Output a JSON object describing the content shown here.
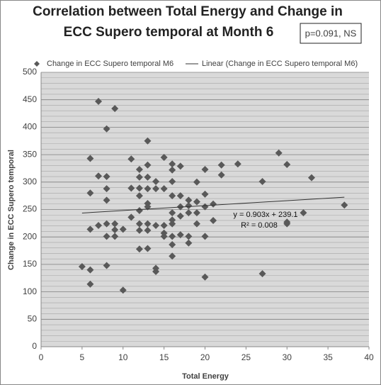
{
  "chart_data": {
    "type": "scatter",
    "title": [
      "Correlation between Total Energy and Change in",
      "ECC Supero temporal at Month 6"
    ],
    "annotation": "p=0.091, NS",
    "xlabel": "Total Energy",
    "ylabel": "Change in ECC Supero temporal",
    "xlim": [
      0,
      40
    ],
    "xticks": [
      0,
      5,
      10,
      15,
      20,
      25,
      30,
      35,
      40
    ],
    "ylim": [
      0,
      500
    ],
    "yticks": [
      0,
      50,
      100,
      150,
      200,
      250,
      300,
      350,
      400,
      450,
      500
    ],
    "grid": true,
    "legend": "top",
    "series": [
      {
        "name": "Change in ECC Supero temporal M6",
        "color": "#595959",
        "x": [
          5,
          6,
          6,
          6,
          6,
          6,
          7,
          7,
          7,
          8,
          8,
          8,
          8,
          8,
          8,
          8,
          9,
          9,
          9,
          9,
          10,
          10,
          11,
          11,
          11,
          12,
          12,
          12,
          12,
          12,
          12,
          12,
          12,
          13,
          13,
          13,
          13,
          13,
          13,
          13,
          13,
          13,
          14,
          14,
          14,
          14,
          14,
          15,
          15,
          15,
          15,
          15,
          16,
          16,
          16,
          16,
          16,
          16,
          16,
          16,
          16,
          16,
          17,
          17,
          17,
          17,
          17,
          18,
          18,
          18,
          18,
          18,
          19,
          19,
          19,
          19,
          20,
          20,
          20,
          20,
          20,
          21,
          21,
          22,
          22,
          24,
          27,
          27,
          29,
          30,
          30,
          30,
          32,
          33,
          37
        ],
        "values": [
          146,
          140,
          114,
          214,
          280,
          343,
          447,
          311,
          221,
          148,
          201,
          224,
          267,
          288,
          310,
          397,
          434,
          224,
          213,
          201,
          214,
          103,
          342,
          289,
          236,
          323,
          309,
          289,
          275,
          248,
          224,
          212,
          178,
          375,
          331,
          309,
          288,
          261,
          255,
          224,
          212,
          179,
          301,
          288,
          221,
          143,
          137,
          345,
          288,
          221,
          207,
          201,
          333,
          322,
          301,
          275,
          244,
          231,
          224,
          201,
          186,
          165,
          329,
          275,
          255,
          238,
          204,
          267,
          257,
          244,
          201,
          189,
          300,
          264,
          244,
          224,
          323,
          278,
          255,
          201,
          127,
          260,
          230,
          331,
          313,
          333,
          301,
          133,
          353,
          332,
          227,
          224,
          244,
          308,
          258
        ]
      }
    ],
    "trendline": {
      "name": "Linear (Change in ECC Supero temporal M6)",
      "color": "#333333",
      "equation": "y = 0.903x + 239.1",
      "r2": "R² = 0.008",
      "x": [
        5,
        37
      ],
      "values": [
        243.6,
        272.5
      ]
    }
  }
}
